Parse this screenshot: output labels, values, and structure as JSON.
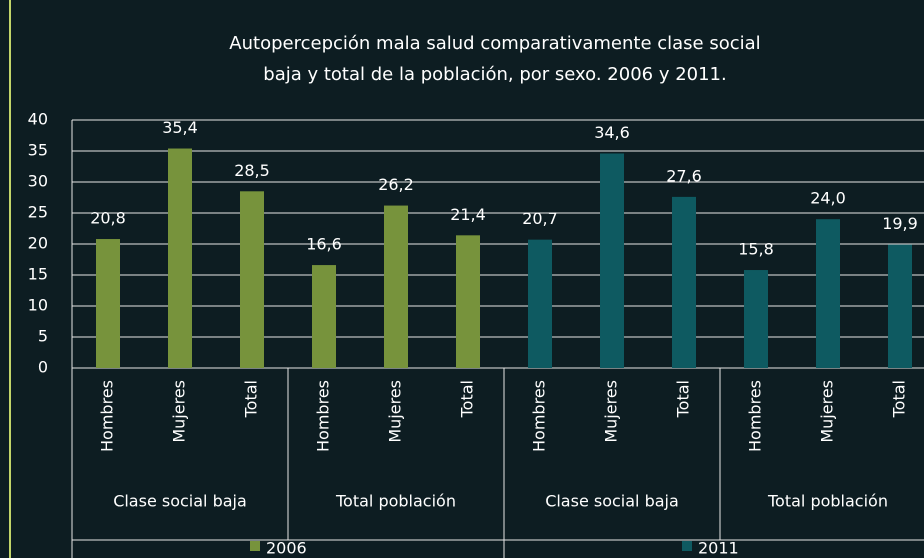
{
  "chart_data": {
    "type": "bar",
    "title": "Autopercepción mala salud comparativamente clase social baja y total de la población, por sexo. 2006 y 2011.",
    "categories": [
      "Hombres",
      "Mujeres",
      "Total",
      "Hombres",
      "Mujeres",
      "Total"
    ],
    "groups": [
      "Clase social baja",
      "Total población"
    ],
    "series": [
      {
        "name": "2006",
        "color": "#77933c",
        "values": [
          20.8,
          35.4,
          28.5,
          16.6,
          26.2,
          21.4
        ],
        "value_labels": [
          "20,8",
          "35,4",
          "28,5",
          "16,6",
          "26,2",
          "21,4"
        ]
      },
      {
        "name": "2011",
        "color": "#0e5a61",
        "values": [
          20.7,
          34.6,
          27.6,
          15.8,
          24.0,
          19.9
        ],
        "value_labels": [
          "20,7",
          "34,6",
          "27,6",
          "15,8",
          "24,0",
          "19,9"
        ]
      }
    ],
    "ylim": [
      0,
      40
    ],
    "yticks": [
      0,
      5,
      10,
      15,
      20,
      25,
      30,
      35,
      40
    ],
    "grid": true
  }
}
